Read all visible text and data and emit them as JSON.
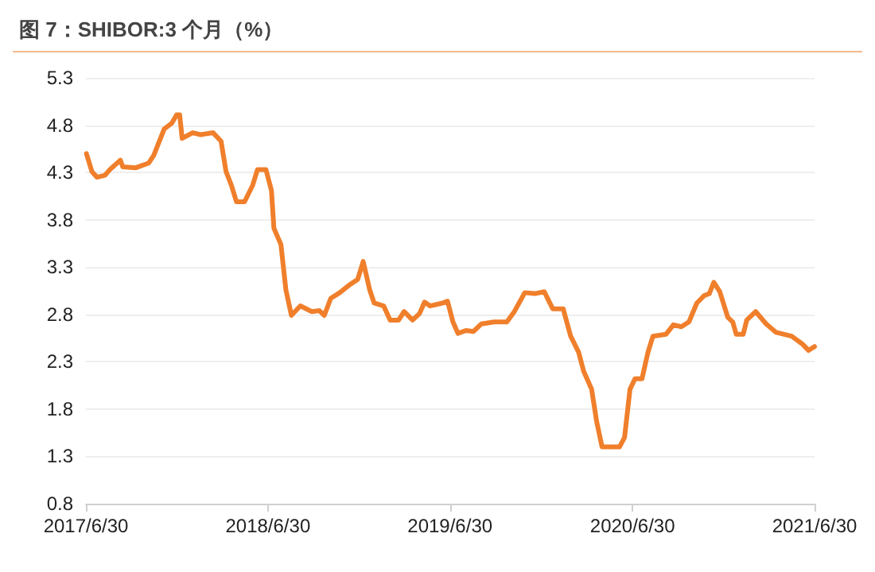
{
  "chart_data": {
    "type": "line",
    "title": "图 7：SHIBOR:3 个月（%）",
    "x": [
      "2017-07-01",
      "2017-07-12",
      "2017-07-22",
      "2017-08-07",
      "2017-08-17",
      "2017-09-07",
      "2017-09-12",
      "2017-10-08",
      "2017-11-03",
      "2017-11-13",
      "2017-12-04",
      "2017-12-19",
      "2017-12-29",
      "2018-01-04",
      "2018-01-09",
      "2018-01-30",
      "2018-02-15",
      "2018-03-12",
      "2018-03-28",
      "2018-04-07",
      "2018-04-18",
      "2018-04-28",
      "2018-05-14",
      "2018-05-30",
      "2018-06-09",
      "2018-06-26",
      "2018-07-07",
      "2018-07-12",
      "2018-07-26",
      "2018-08-05",
      "2018-08-16",
      "2018-09-03",
      "2018-09-26",
      "2018-10-11",
      "2018-10-21",
      "2018-11-03",
      "2018-11-21",
      "2018-12-10",
      "2018-12-27",
      "2019-01-07",
      "2019-01-20",
      "2019-01-29",
      "2019-02-17",
      "2019-03-02",
      "2019-03-19",
      "2019-03-30",
      "2019-04-16",
      "2019-04-30",
      "2019-05-10",
      "2019-05-21",
      "2019-06-15",
      "2019-06-25",
      "2019-07-06",
      "2019-07-16",
      "2019-08-01",
      "2019-08-16",
      "2019-09-01",
      "2019-09-26",
      "2019-10-22",
      "2019-11-06",
      "2019-11-27",
      "2019-12-17",
      "2020-01-05",
      "2020-01-22",
      "2020-02-12",
      "2020-02-27",
      "2020-03-14",
      "2020-03-24",
      "2020-04-09",
      "2020-04-19",
      "2020-04-30",
      "2020-06-04",
      "2020-06-14",
      "2020-06-25",
      "2020-07-05",
      "2020-07-19",
      "2020-07-31",
      "2020-08-10",
      "2020-09-05",
      "2020-09-20",
      "2020-10-06",
      "2020-10-21",
      "2020-11-06",
      "2020-11-21",
      "2020-12-01",
      "2020-12-10",
      "2020-12-22",
      "2021-01-07",
      "2021-01-17",
      "2021-01-24",
      "2021-02-07",
      "2021-02-14",
      "2021-03-04",
      "2021-03-25",
      "2021-04-14",
      "2021-05-15",
      "2021-06-05",
      "2021-06-18",
      "2021-06-30"
    ],
    "series": [
      {
        "color": "#f07f2c",
        "values": [
          4.5,
          4.31,
          4.25,
          4.27,
          4.33,
          4.43,
          4.36,
          4.35,
          4.4,
          4.48,
          4.76,
          4.82,
          4.91,
          4.91,
          4.66,
          4.72,
          4.7,
          4.72,
          4.63,
          4.31,
          4.16,
          3.99,
          3.99,
          4.16,
          4.33,
          4.33,
          4.11,
          3.71,
          3.54,
          3.06,
          2.79,
          2.89,
          2.83,
          2.84,
          2.79,
          2.97,
          3.03,
          3.11,
          3.17,
          3.36,
          3.06,
          2.92,
          2.89,
          2.74,
          2.74,
          2.83,
          2.74,
          2.81,
          2.93,
          2.89,
          2.92,
          2.94,
          2.72,
          2.6,
          2.63,
          2.62,
          2.7,
          2.72,
          2.72,
          2.83,
          3.03,
          3.02,
          3.04,
          2.86,
          2.86,
          2.57,
          2.4,
          2.2,
          2.01,
          1.67,
          1.4,
          1.4,
          1.5,
          2.01,
          2.12,
          2.12,
          2.4,
          2.57,
          2.59,
          2.69,
          2.67,
          2.72,
          2.92,
          3.0,
          3.02,
          3.14,
          3.04,
          2.77,
          2.72,
          2.59,
          2.59,
          2.74,
          2.83,
          2.7,
          2.61,
          2.57,
          2.49,
          2.42,
          2.46
        ]
      }
    ],
    "xlim": [
      "2017-06-30",
      "2021-06-30"
    ],
    "xticks": [
      {
        "value": "2017-06-30",
        "label": "2017/6/30"
      },
      {
        "value": "2018-06-30",
        "label": "2018/6/30"
      },
      {
        "value": "2019-06-30",
        "label": "2019/6/30"
      },
      {
        "value": "2020-06-30",
        "label": "2020/6/30"
      },
      {
        "value": "2021-06-30",
        "label": "2021/6/30"
      }
    ],
    "ylim": [
      0.8,
      5.3
    ],
    "yticks": [
      0.8,
      1.3,
      1.8,
      2.3,
      2.8,
      3.3,
      3.8,
      4.3,
      4.8,
      5.3
    ],
    "grid": "y",
    "marker": "none",
    "line_style": "solid"
  }
}
